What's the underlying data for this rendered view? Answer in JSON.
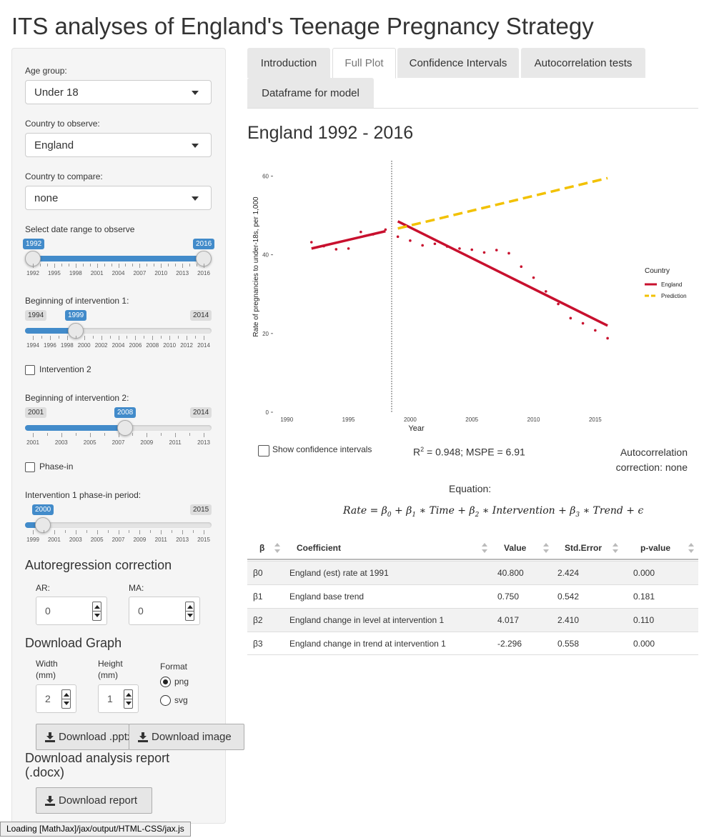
{
  "page_title": "ITS analyses of England's Teenage Pregnancy Strategy",
  "sidebar": {
    "age_group": {
      "label": "Age group:",
      "value": "Under 18"
    },
    "country_observe": {
      "label": "Country to observe:",
      "value": "England"
    },
    "country_compare": {
      "label": "Country to compare:",
      "value": "none"
    },
    "date_range": {
      "label": "Select date range to observe",
      "min": "1992",
      "max": "2016",
      "from": "1992",
      "to": "2016",
      "ticks": [
        "1992",
        "1995",
        "1998",
        "2001",
        "2004",
        "2007",
        "2010",
        "2013",
        "2016"
      ]
    },
    "intervention1": {
      "label": "Beginning of intervention 1:",
      "min": "1994",
      "max": "2014",
      "value": "1999",
      "ticks": [
        "1994",
        "1996",
        "1998",
        "2000",
        "2002",
        "2004",
        "2006",
        "2008",
        "2010",
        "2012",
        "2014"
      ]
    },
    "intervention2_toggle": {
      "label": "Intervention 2",
      "checked": false
    },
    "intervention2": {
      "label": "Beginning of intervention 2:",
      "min": "2001",
      "max": "2014",
      "value": "2008",
      "ticks": [
        "2001",
        "2003",
        "2005",
        "2007",
        "2009",
        "2011",
        "2013"
      ]
    },
    "phase_in_toggle": {
      "label": "Phase-in",
      "checked": false
    },
    "phase_in": {
      "label": "Intervention 1 phase-in period:",
      "min": "1999",
      "max": "2015",
      "value": "2000",
      "ticks": [
        "1999",
        "2001",
        "2003",
        "2005",
        "2007",
        "2009",
        "2011",
        "2013",
        "2015"
      ]
    },
    "autoregression": {
      "heading": "Autoregression correction",
      "ar_label": "AR:",
      "ar_value": "0",
      "ma_label": "MA:",
      "ma_value": "0"
    },
    "download_graph": {
      "heading": "Download Graph",
      "width_label_1": "Width",
      "width_label_2": "(mm)",
      "width_value": "2",
      "height_label_1": "Height",
      "height_label_2": "(mm)",
      "height_value": "1",
      "format_label": "Format",
      "format_png": "png",
      "format_svg": "svg",
      "selected_format": "png",
      "download_ppt": "Download .pptx",
      "download_image": "Download image"
    },
    "download_report": {
      "heading": "Download analysis report (.docx)",
      "button": "Download report"
    }
  },
  "tabs": [
    {
      "label": "Introduction",
      "active": false
    },
    {
      "label": "Full Plot",
      "active": true
    },
    {
      "label": "Confidence Intervals",
      "active": false
    },
    {
      "label": "Autocorrelation tests",
      "active": false
    },
    {
      "label": "Dataframe for model",
      "active": false
    }
  ],
  "plot_title": "England 1992 - 2016",
  "show_ci_label": "Show confidence intervals",
  "r2_label": "= 0.948; MSPE = 6.91",
  "autocorr_text_1": "Autocorrelation",
  "autocorr_text_2": "correction: none",
  "equation_label": "Equation:",
  "chart_data": {
    "type": "scatter",
    "xlabel": "Year",
    "ylabel": "Rate of pregnancies to under-18s, per 1,000",
    "xlim": [
      1989,
      2017.5
    ],
    "ylim": [
      0,
      63
    ],
    "x_ticks": [
      1990,
      1995,
      2000,
      2005,
      2010,
      2015
    ],
    "y_ticks": [
      0,
      20,
      40,
      60
    ],
    "intervention_line_x": 1998.5,
    "legend_title": "Country",
    "legend_position": "right",
    "series": [
      {
        "name": "England",
        "kind": "points",
        "color": "#c8102e",
        "x": [
          1992,
          1993,
          1994,
          1995,
          1996,
          1997,
          1998,
          1999,
          2000,
          2001,
          2002,
          2003,
          2004,
          2005,
          2006,
          2007,
          2008,
          2009,
          2010,
          2011,
          2012,
          2013,
          2014,
          2015,
          2016
        ],
        "y": [
          43.2,
          42.2,
          41.4,
          41.6,
          45.8,
          45.2,
          46.4,
          44.6,
          43.6,
          42.4,
          42.8,
          42.1,
          41.6,
          41.3,
          40.6,
          41.2,
          40.4,
          37.0,
          34.2,
          30.7,
          27.5,
          23.9,
          22.6,
          20.8,
          18.8
        ]
      },
      {
        "name": "England",
        "kind": "line",
        "color": "#c8102e",
        "x": [
          1992,
          1998
        ],
        "y": [
          41.6,
          46.0
        ]
      },
      {
        "name": "England",
        "kind": "line",
        "color": "#c8102e",
        "x": [
          1999,
          2016
        ],
        "y": [
          48.5,
          22.0
        ]
      },
      {
        "name": "Prediction",
        "kind": "dashed",
        "color": "#f2c100",
        "x": [
          1999,
          2016
        ],
        "y": [
          46.7,
          59.5
        ]
      }
    ]
  },
  "table": {
    "headers": [
      "β",
      "Coefficient",
      "Value",
      "Std.Error",
      "p-value"
    ],
    "rows": [
      [
        "β0",
        "England (est) rate at 1991",
        "40.800",
        "2.424",
        "0.000"
      ],
      [
        "β1",
        "England base trend",
        "0.750",
        "0.542",
        "0.181"
      ],
      [
        "β2",
        "England change in level at intervention 1",
        "4.017",
        "2.410",
        "0.110"
      ],
      [
        "β3",
        "England change in trend at intervention 1",
        "-2.296",
        "0.558",
        "0.000"
      ]
    ]
  },
  "status_bar": "Loading [MathJax]/jax/output/HTML-CSS/jax.js"
}
